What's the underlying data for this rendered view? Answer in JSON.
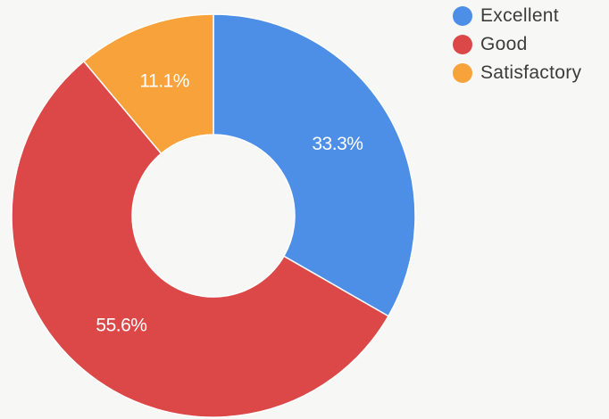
{
  "chart_data": {
    "type": "pie",
    "subtype": "donut",
    "categories": [
      "Excellent",
      "Good",
      "Satisfactory"
    ],
    "values": [
      33.3,
      55.6,
      11.1
    ],
    "data_labels": [
      "33.3%",
      "55.6%",
      "11.1%"
    ],
    "colors": [
      "#4d8ee6",
      "#dc4848",
      "#f7a23a"
    ],
    "legend_position": "top-right",
    "start_angle_deg": 0,
    "direction": "clockwise"
  }
}
